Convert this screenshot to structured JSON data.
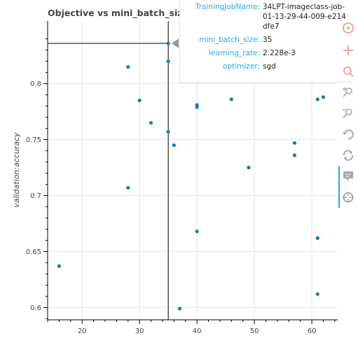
{
  "chart_data": {
    "type": "scatter",
    "title": "Objective vs mini_batch_size",
    "xlabel": "",
    "ylabel": "validation:accuracy",
    "xlim": [
      14,
      64.5
    ],
    "ylim": [
      0.589,
      0.856
    ],
    "x_ticks": [
      20,
      30,
      40,
      50,
      60
    ],
    "y_ticks": [
      0.6,
      0.65,
      0.7,
      0.75,
      0.8
    ],
    "x_tick_labels": [
      "20",
      "30",
      "40",
      "50",
      "60"
    ],
    "y_tick_labels": [
      "0.6",
      "0.65",
      "0.7",
      "0.75",
      "0.8"
    ],
    "grid": true,
    "point_color": "#1f77b4",
    "points": [
      {
        "x": 16,
        "y": 0.637
      },
      {
        "x": 28,
        "y": 0.815
      },
      {
        "x": 28,
        "y": 0.707
      },
      {
        "x": 30,
        "y": 0.785
      },
      {
        "x": 32,
        "y": 0.765
      },
      {
        "x": 35,
        "y": 0.836
      },
      {
        "x": 35,
        "y": 0.82
      },
      {
        "x": 35,
        "y": 0.757
      },
      {
        "x": 36,
        "y": 0.745
      },
      {
        "x": 37,
        "y": 0.599
      },
      {
        "x": 40,
        "y": 0.781
      },
      {
        "x": 40,
        "y": 0.779
      },
      {
        "x": 40,
        "y": 0.668
      },
      {
        "x": 46,
        "y": 0.786
      },
      {
        "x": 49,
        "y": 0.725
      },
      {
        "x": 57,
        "y": 0.747
      },
      {
        "x": 57,
        "y": 0.736
      },
      {
        "x": 61,
        "y": 0.786
      },
      {
        "x": 61,
        "y": 0.662
      },
      {
        "x": 61,
        "y": 0.612
      },
      {
        "x": 62,
        "y": 0.788
      }
    ],
    "hover": {
      "x": 35,
      "y": 0.836
    }
  },
  "tooltip": {
    "rows": [
      {
        "key": "TrainingJobName:",
        "value": "34LPT-imageclass-job-01-13-29-44-009-e214dfe7"
      },
      {
        "key": "mini_batch_size:",
        "value": "35"
      },
      {
        "key": "learning_rate:",
        "value": "2.228e-3"
      },
      {
        "key": "optimizer:",
        "value": "sgd"
      }
    ]
  },
  "toolbar": {
    "tools": [
      "bokeh-logo-icon",
      "pan-icon",
      "box-zoom-icon",
      "zoom-in-icon",
      "zoom-out-icon",
      "undo-icon",
      "reset-icon",
      "hover-icon",
      "crosshair-icon"
    ],
    "active_color": "#26aae1"
  }
}
